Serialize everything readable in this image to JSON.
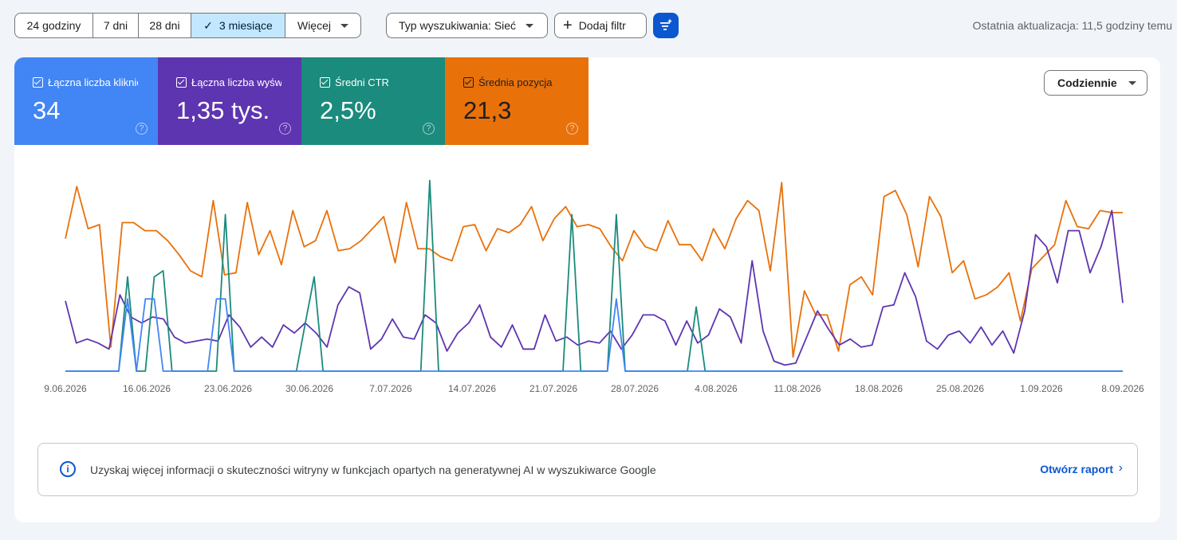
{
  "toolbar": {
    "date_ranges": [
      "24 godziny",
      "7 dni",
      "28 dni",
      "3 miesiące",
      "Więcej"
    ],
    "selected_range": "3 miesiące",
    "search_type": "Typ wyszukiwania: Sieć",
    "add_filter": "Dodaj filtr",
    "last_update": "Ostatnia aktualizacja: 11,5 godziny temu"
  },
  "metrics": [
    {
      "label": "Łączna liczba kliknięć",
      "value": "34",
      "help": "?",
      "color": "#4285f4"
    },
    {
      "label": "Łączna liczba wyświetleń",
      "value": "1,35 tys.",
      "help": "?",
      "color": "#5e35b1"
    },
    {
      "label": "Średni CTR",
      "value": "2,5%",
      "help": "?",
      "color": "#1a8b7c"
    },
    {
      "label": "Średnia pozycja",
      "value": "21,3",
      "help": "?",
      "color": "#e8710a"
    }
  ],
  "granularity": "Codziennie",
  "banner": {
    "info_icon": "i",
    "text": "Uzyskaj więcej informacji o skuteczności witryny w funkcjach opartych na generatywnej AI w wyszukiwarce Google",
    "link": "Otwórz raport",
    "chevron": "›"
  },
  "chart_data": {
    "type": "line",
    "x_ticks": [
      "9.06.2026",
      "16.06.2026",
      "23.06.2026",
      "30.06.2026",
      "7.07.2026",
      "14.07.2026",
      "21.07.2026",
      "28.07.2026",
      "4.08.2026",
      "11.08.2026",
      "18.08.2026",
      "25.08.2026",
      "1.09.2026",
      "8.09.2026"
    ],
    "grid": false,
    "series": [
      {
        "name": "Średnia pozycja",
        "color": "#e8710a",
        "ylim": [
          0,
          100
        ],
        "values": [
          66,
          92,
          71,
          73,
          12,
          74,
          74,
          70,
          70,
          65,
          58,
          50,
          47,
          85,
          48,
          49,
          84,
          58,
          70,
          53,
          80,
          62,
          65,
          80,
          60,
          61,
          65,
          71,
          77,
          54,
          84,
          61,
          61,
          57,
          55,
          72,
          73,
          60,
          71,
          69,
          73,
          82,
          65,
          76,
          82,
          72,
          73,
          71,
          62,
          55,
          70,
          62,
          60,
          75,
          63,
          63,
          55,
          71,
          61,
          76,
          85,
          80,
          50,
          94,
          7,
          40,
          28,
          28,
          10,
          43,
          47,
          38,
          87,
          90,
          78,
          52,
          87,
          77,
          49,
          55,
          36,
          38,
          42,
          49,
          25,
          51,
          57,
          63,
          85,
          72,
          71,
          80,
          79,
          79
        ]
      },
      {
        "name": "Łączna liczba wyświetleń",
        "color": "#5e35b1",
        "ylim": [
          0,
          100
        ],
        "values": [
          35,
          14,
          16,
          14,
          11,
          38,
          27,
          24,
          27,
          26,
          17,
          14,
          15,
          16,
          15,
          28,
          22,
          12,
          17,
          12,
          23,
          19,
          24,
          19,
          12,
          33,
          42,
          39,
          11,
          16,
          26,
          17,
          16,
          28,
          24,
          10,
          19,
          24,
          33,
          17,
          12,
          23,
          11,
          11,
          28,
          15,
          17,
          13,
          15,
          14,
          20,
          11,
          18,
          28,
          28,
          25,
          13,
          25,
          14,
          18,
          31,
          27,
          14,
          55,
          20,
          5,
          3,
          4,
          17,
          30,
          21,
          13,
          16,
          12,
          13,
          32,
          33,
          49,
          37,
          15,
          11,
          18,
          20,
          14,
          22,
          13,
          20,
          9,
          30,
          68,
          62,
          44,
          70,
          70,
          49,
          62,
          80,
          34
        ]
      },
      {
        "name": "Średni CTR",
        "color": "#1a8b7c",
        "ylim": [
          0,
          100
        ],
        "values": [
          0,
          0,
          0,
          0,
          0,
          0,
          0,
          47,
          0,
          0,
          47,
          50,
          0,
          0,
          0,
          0,
          0,
          0,
          78,
          0,
          0,
          0,
          0,
          0,
          0,
          0,
          0,
          24,
          47,
          0,
          0,
          0,
          0,
          0,
          0,
          0,
          0,
          0,
          0,
          0,
          0,
          95,
          0,
          0,
          0,
          0,
          0,
          0,
          0,
          0,
          0,
          0,
          0,
          0,
          0,
          0,
          0,
          78,
          0,
          0,
          0,
          0,
          78,
          0,
          0,
          0,
          0,
          0,
          0,
          0,
          0,
          32,
          0,
          0,
          0,
          0,
          0,
          0,
          0,
          0,
          0,
          0,
          0,
          0,
          0,
          0,
          0,
          0,
          0,
          0,
          0,
          0,
          0,
          0,
          0,
          0,
          0,
          0,
          0,
          0,
          0,
          0,
          0,
          0,
          0,
          0,
          0,
          0,
          0,
          0,
          0,
          0,
          0,
          0,
          0,
          0,
          0,
          0,
          0,
          0
        ]
      },
      {
        "name": "Łączna liczba kliknięć",
        "color": "#4285f4",
        "ylim": [
          0,
          100
        ],
        "values": [
          0,
          0,
          0,
          0,
          0,
          0,
          0,
          36,
          0,
          36,
          36,
          0,
          0,
          0,
          0,
          0,
          0,
          36,
          36,
          0,
          0,
          0,
          0,
          0,
          0,
          0,
          0,
          0,
          0,
          0,
          0,
          0,
          0,
          0,
          0,
          0,
          0,
          0,
          0,
          0,
          0,
          0,
          0,
          0,
          0,
          0,
          0,
          0,
          0,
          0,
          0,
          0,
          0,
          0,
          0,
          0,
          0,
          0,
          0,
          0,
          0,
          0,
          36,
          0,
          0,
          0,
          0,
          0,
          0,
          0,
          0,
          0,
          0,
          0,
          0,
          0,
          0,
          0,
          0,
          0,
          0,
          0,
          0,
          0,
          0,
          0,
          0,
          0,
          0,
          0,
          0,
          0,
          0,
          0,
          0,
          0,
          0,
          0,
          0,
          0,
          0,
          0,
          0,
          0,
          0,
          0,
          0,
          0,
          0,
          0,
          0,
          0,
          0,
          0,
          0,
          0,
          0,
          0,
          0,
          0
        ]
      }
    ]
  }
}
